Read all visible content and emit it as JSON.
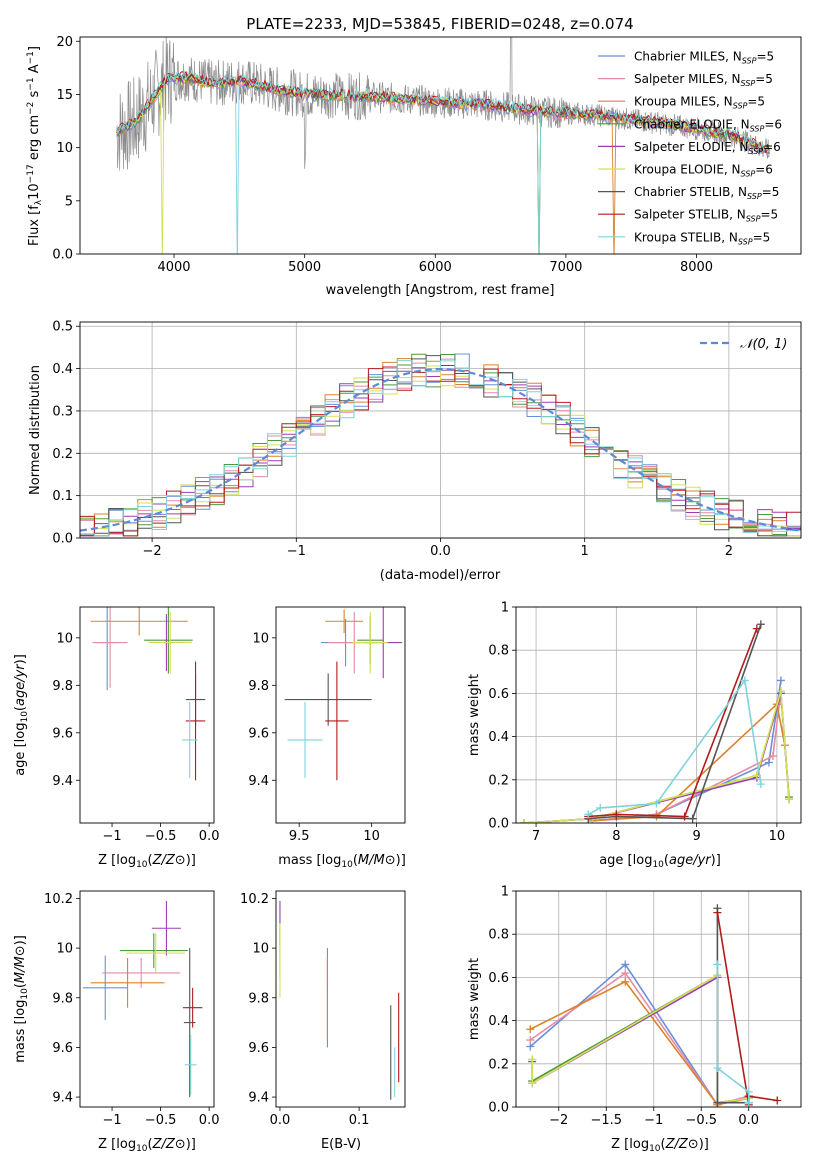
{
  "title": "PLATE=2233, MJD=53845, FIBERID=0248, z=0.074",
  "colors": {
    "Chabrier MILES": "#6a8fd8",
    "Salpeter MILES": "#e68aa6",
    "Kroupa MILES": "#d9822b",
    "Chabrier ELODIE": "#4f9a3d",
    "Salpeter ELODIE": "#9b3fb5",
    "Kroupa ELODIE": "#d4e157",
    "Chabrier STELIB": "#555555",
    "Salpeter STELIB": "#b31b1b",
    "Kroupa STELIB": "#7fd3dc",
    "observed": "#8c8c8c",
    "gauss": "#5b8bd6"
  },
  "chart_data": [
    {
      "id": "spectrum",
      "type": "line",
      "xlabel": "wavelength [Angstrom, rest frame]",
      "ylabel": "Flux [f_λ 10^{-17} erg cm^{-2} s^{-1} A^{-1}]",
      "xlim": [
        3280,
        8800
      ],
      "ylim": [
        0,
        20.4
      ],
      "xticks": [
        4000,
        5000,
        6000,
        7000,
        8000
      ],
      "yticks": [
        0,
        5,
        10,
        15,
        20
      ],
      "legend_position": "upper right",
      "legend": [
        {
          "model": "Chabrier MILES",
          "nssp": "5"
        },
        {
          "model": "Salpeter MILES",
          "nssp": "5"
        },
        {
          "model": "Kroupa MILES",
          "nssp": "5"
        },
        {
          "model": "Chabrier ELODIE",
          "nssp": "6"
        },
        {
          "model": "Salpeter ELODIE",
          "nssp": "6"
        },
        {
          "model": "Kroupa ELODIE",
          "nssp": "6"
        },
        {
          "model": "Chabrier STELIB",
          "nssp": "5"
        },
        {
          "model": "Salpeter STELIB",
          "nssp": "5"
        },
        {
          "model": "Kroupa STELIB",
          "nssp": "5"
        }
      ],
      "continuum": [
        [
          3560,
          11.5
        ],
        [
          3700,
          12.3
        ],
        [
          3850,
          14.8
        ],
        [
          3950,
          16.5
        ],
        [
          4100,
          16.6
        ],
        [
          4300,
          16.0
        ],
        [
          4500,
          16.3
        ],
        [
          4800,
          15.4
        ],
        [
          5000,
          15.0
        ],
        [
          5300,
          14.9
        ],
        [
          5600,
          14.7
        ],
        [
          6000,
          14.3
        ],
        [
          6400,
          14.0
        ],
        [
          6800,
          13.4
        ],
        [
          7200,
          13.1
        ],
        [
          7600,
          12.5
        ],
        [
          8000,
          11.8
        ],
        [
          8300,
          11.0
        ],
        [
          8550,
          9.7
        ]
      ]
    },
    {
      "id": "residuals",
      "type": "line",
      "xlabel": "(data-model)/error",
      "ylabel": "Normed distribution",
      "xlim": [
        -2.5,
        2.5
      ],
      "ylim": [
        0,
        0.51
      ],
      "xticks": [
        -2,
        -1,
        0,
        1,
        2
      ],
      "yticks": [
        0.0,
        0.1,
        0.2,
        0.3,
        0.4,
        0.5
      ],
      "grid": true,
      "legend_position": "upper right",
      "legend": [
        "𝒩(0, 1)"
      ],
      "series": [
        {
          "name": "𝒩(0, 1)",
          "mu": 0,
          "sigma": 1,
          "style": "dashed"
        }
      ]
    },
    {
      "id": "age-vs-Z",
      "type": "scatter",
      "xlabel": "Z [log10(Z/Z⊙)]",
      "ylabel": "age [log10(age/yr)]",
      "xlim": [
        -1.33,
        0.05
      ],
      "ylim": [
        9.22,
        10.13
      ],
      "xticks": [
        -1.0,
        -0.5,
        0.0
      ],
      "yticks": [
        9.4,
        9.6,
        9.8,
        10.0
      ],
      "points": [
        {
          "model": "Chabrier MILES",
          "x": -1.05,
          "xerr": 0.1,
          "y": 9.98,
          "yerr": 0.2
        },
        {
          "model": "Salpeter MILES",
          "x": -1.02,
          "xerr": 0.18,
          "y": 9.98,
          "yerr": 0.19
        },
        {
          "model": "Kroupa MILES",
          "x": -0.72,
          "xerr": 0.5,
          "y": 10.07,
          "yerr": 0.06
        },
        {
          "model": "Chabrier ELODIE",
          "x": -0.42,
          "xerr": 0.25,
          "y": 9.99,
          "yerr": 0.14
        },
        {
          "model": "Salpeter ELODIE",
          "x": -0.44,
          "xerr": 0.02,
          "y": 9.98,
          "yerr": 0.12
        },
        {
          "model": "Kroupa ELODIE",
          "x": -0.4,
          "xerr": 0.22,
          "y": 9.98,
          "yerr": 0.13
        },
        {
          "model": "Chabrier STELIB",
          "x": -0.14,
          "xerr": 0.1,
          "y": 9.74,
          "yerr": 0.11
        },
        {
          "model": "Salpeter STELIB",
          "x": -0.14,
          "xerr": 0.1,
          "y": 9.65,
          "yerr": 0.25
        },
        {
          "model": "Kroupa STELIB",
          "x": -0.2,
          "xerr": 0.08,
          "y": 9.57,
          "yerr": 0.16
        }
      ]
    },
    {
      "id": "age-vs-mass",
      "type": "scatter",
      "xlabel": "mass [log10(M/M⊙)]",
      "ylabel": "",
      "xlim": [
        9.34,
        10.23
      ],
      "ylim": [
        9.22,
        10.13
      ],
      "xticks": [
        9.5,
        10.0
      ],
      "yticks": [
        9.4,
        9.6,
        9.8,
        10.0
      ],
      "points": [
        {
          "model": "Chabrier MILES",
          "x": 9.82,
          "xerr": 0.17,
          "y": 9.98,
          "yerr": 0.1
        },
        {
          "model": "Salpeter MILES",
          "x": 9.88,
          "xerr": 0.18,
          "y": 9.98,
          "yerr": 0.13
        },
        {
          "model": "Kroupa MILES",
          "x": 9.81,
          "xerr": 0.13,
          "y": 10.07,
          "yerr": 0.05
        },
        {
          "model": "Chabrier ELODIE",
          "x": 9.99,
          "xerr": 0.09,
          "y": 9.99,
          "yerr": 0.1
        },
        {
          "model": "Salpeter ELODIE",
          "x": 10.08,
          "xerr": 0.13,
          "y": 9.98,
          "yerr": 0.15
        },
        {
          "model": "Kroupa ELODIE",
          "x": 9.99,
          "xerr": 0.12,
          "y": 9.98,
          "yerr": 0.13
        },
        {
          "model": "Chabrier STELIB",
          "x": 9.7,
          "xerr": 0.3,
          "y": 9.74,
          "yerr": 0.11
        },
        {
          "model": "Salpeter STELIB",
          "x": 9.76,
          "xerr": 0.08,
          "y": 9.65,
          "yerr": 0.25
        },
        {
          "model": "Kroupa STELIB",
          "x": 9.54,
          "xerr": 0.12,
          "y": 9.57,
          "yerr": 0.16
        }
      ]
    },
    {
      "id": "mass-weight-vs-age",
      "type": "line",
      "xlabel": "age [log10(age/yr)]",
      "ylabel": "mass weight",
      "xlim": [
        6.75,
        10.3
      ],
      "ylim": [
        0,
        1.0
      ],
      "xticks": [
        7,
        8,
        9,
        10
      ],
      "yticks": [
        0.0,
        0.2,
        0.4,
        0.6,
        0.8,
        1.0
      ],
      "grid": true,
      "series": [
        {
          "model": "Chabrier MILES",
          "x": [
            7.7,
            8.5,
            9.9,
            10.05
          ],
          "y": [
            0.01,
            0.04,
            0.28,
            0.66
          ]
        },
        {
          "model": "Salpeter MILES",
          "x": [
            7.7,
            8.5,
            9.95,
            10.05
          ],
          "y": [
            0.01,
            0.04,
            0.31,
            0.61
          ]
        },
        {
          "model": "Kroupa MILES",
          "x": [
            7.7,
            8.5,
            10.0,
            10.1
          ],
          "y": [
            0.01,
            0.03,
            0.55,
            0.36
          ]
        },
        {
          "model": "Chabrier ELODIE",
          "x": [
            6.85,
            7.7,
            9.75,
            10.05,
            10.15
          ],
          "y": [
            0.0,
            0.02,
            0.22,
            0.6,
            0.12
          ]
        },
        {
          "model": "Salpeter ELODIE",
          "x": [
            6.85,
            7.7,
            9.75,
            10.05,
            10.15
          ],
          "y": [
            0.0,
            0.02,
            0.21,
            0.6,
            0.11
          ]
        },
        {
          "model": "Kroupa ELODIE",
          "x": [
            6.85,
            7.7,
            9.75,
            10.05,
            10.15
          ],
          "y": [
            0.0,
            0.02,
            0.22,
            0.61,
            0.11
          ]
        },
        {
          "model": "Chabrier STELIB",
          "x": [
            7.65,
            8.0,
            8.95,
            9.8
          ],
          "y": [
            0.02,
            0.03,
            0.02,
            0.92
          ]
        },
        {
          "model": "Salpeter STELIB",
          "x": [
            7.65,
            8.0,
            8.85,
            9.75
          ],
          "y": [
            0.03,
            0.04,
            0.03,
            0.9
          ]
        },
        {
          "model": "Kroupa STELIB",
          "x": [
            7.65,
            7.8,
            8.5,
            9.6,
            9.8
          ],
          "y": [
            0.04,
            0.07,
            0.09,
            0.66,
            0.18
          ]
        }
      ]
    },
    {
      "id": "mass-vs-Z",
      "type": "scatter",
      "xlabel": "Z [log10(Z/Z⊙)]",
      "ylabel": "mass [log10(M/M⊙)]",
      "xlim": [
        -1.33,
        0.05
      ],
      "ylim": [
        9.36,
        10.23
      ],
      "xticks": [
        -1.0,
        -0.5,
        0.0
      ],
      "yticks": [
        9.4,
        9.6,
        9.8,
        10.0,
        10.2
      ],
      "points": [
        {
          "model": "Chabrier MILES",
          "x": -1.07,
          "xerr": 0.23,
          "y": 9.84,
          "yerr": 0.13
        },
        {
          "model": "Salpeter MILES",
          "x": -0.7,
          "xerr": 0.4,
          "y": 9.9,
          "yerr": 0.06
        },
        {
          "model": "Kroupa MILES",
          "x": -0.84,
          "xerr": 0.38,
          "y": 9.86,
          "yerr": 0.1
        },
        {
          "model": "Chabrier ELODIE",
          "x": -0.57,
          "xerr": 0.35,
          "y": 9.99,
          "yerr": 0.07
        },
        {
          "model": "Salpeter ELODIE",
          "x": -0.44,
          "xerr": 0.15,
          "y": 10.08,
          "yerr": 0.11
        },
        {
          "model": "Kroupa ELODIE",
          "x": -0.55,
          "xerr": 0.3,
          "y": 9.98,
          "yerr": 0.08
        },
        {
          "model": "Chabrier STELIB",
          "x": -0.2,
          "xerr": 0.06,
          "y": 9.7,
          "yerr": 0.3
        },
        {
          "model": "Salpeter STELIB",
          "x": -0.17,
          "xerr": 0.1,
          "y": 9.76,
          "yerr": 0.08
        },
        {
          "model": "Kroupa STELIB",
          "x": -0.19,
          "xerr": 0.06,
          "y": 9.53,
          "yerr": 0.12
        }
      ]
    },
    {
      "id": "mass-vs-EBV",
      "type": "scatter",
      "xlabel": "E(B-V)",
      "ylabel": "",
      "xlim": [
        -0.005,
        0.158
      ],
      "ylim": [
        9.36,
        10.23
      ],
      "xticks": [
        0.0,
        0.1
      ],
      "yticks": [
        9.4,
        9.6,
        9.8,
        10.0,
        10.2
      ],
      "points": [
        {
          "model": "Chabrier MILES",
          "x": 0.06,
          "xerr": 0,
          "y": 9.8,
          "yerr": 0.2
        },
        {
          "model": "Salpeter MILES",
          "x": 0.06,
          "xerr": 0,
          "y": 9.9,
          "yerr": 0.05
        },
        {
          "model": "Kroupa MILES",
          "x": 0.06,
          "xerr": 0,
          "y": 9.8,
          "yerr": 0.17
        },
        {
          "model": "Chabrier ELODIE",
          "x": 0.0,
          "xerr": 0,
          "y": 9.98,
          "yerr": 0.1
        },
        {
          "model": "Salpeter ELODIE",
          "x": 0.0,
          "xerr": 0,
          "y": 10.1,
          "yerr": 0.09
        },
        {
          "model": "Kroupa ELODIE",
          "x": 0.0,
          "xerr": 0,
          "y": 9.95,
          "yerr": 0.15
        },
        {
          "model": "Chabrier STELIB",
          "x": 0.14,
          "xerr": 0,
          "y": 9.58,
          "yerr": 0.19
        },
        {
          "model": "Salpeter STELIB",
          "x": 0.15,
          "xerr": 0,
          "y": 9.64,
          "yerr": 0.18
        },
        {
          "model": "Kroupa STELIB",
          "x": 0.145,
          "xerr": 0,
          "y": 9.5,
          "yerr": 0.1
        }
      ]
    },
    {
      "id": "mass-weight-vs-Z",
      "type": "line",
      "xlabel": "Z [log10(Z/Z⊙)]",
      "ylabel": "mass weight",
      "xlim": [
        -2.45,
        0.55
      ],
      "ylim": [
        0,
        1.0
      ],
      "xticks": [
        -2.0,
        -1.5,
        -1.0,
        -0.5,
        0.0
      ],
      "yticks": [
        0.0,
        0.2,
        0.4,
        0.6,
        0.8,
        1.0
      ],
      "grid": true,
      "series": [
        {
          "model": "Chabrier MILES",
          "x": [
            -2.3,
            -1.3,
            -0.33,
            0.0
          ],
          "y": [
            0.28,
            0.66,
            0.01,
            0.05
          ]
        },
        {
          "model": "Salpeter MILES",
          "x": [
            -2.3,
            -1.3,
            -0.33,
            0.0
          ],
          "y": [
            0.31,
            0.62,
            0.01,
            0.05
          ]
        },
        {
          "model": "Kroupa MILES",
          "x": [
            -2.3,
            -1.3,
            -0.33,
            0.0
          ],
          "y": [
            0.36,
            0.58,
            0.01,
            0.04
          ]
        },
        {
          "model": "Chabrier ELODIE",
          "x": [
            -2.28,
            -2.28,
            -0.33,
            -0.33,
            0.0
          ],
          "y": [
            0.22,
            0.12,
            0.61,
            0.02,
            0.04
          ]
        },
        {
          "model": "Salpeter ELODIE",
          "x": [
            -2.28,
            -2.28,
            -0.33,
            -0.33,
            0.0
          ],
          "y": [
            0.21,
            0.11,
            0.6,
            0.02,
            0.04
          ]
        },
        {
          "model": "Kroupa ELODIE",
          "x": [
            -2.28,
            -2.28,
            -0.33,
            -0.33,
            0.0
          ],
          "y": [
            0.22,
            0.11,
            0.61,
            0.02,
            0.04
          ]
        },
        {
          "model": "Chabrier STELIB",
          "x": [
            -0.33,
            -0.33,
            0.0,
            0.0
          ],
          "y": [
            0.92,
            0.02,
            0.02,
            0.05
          ]
        },
        {
          "model": "Salpeter STELIB",
          "x": [
            -0.33,
            0.0,
            0.0,
            0.3
          ],
          "y": [
            0.9,
            0.01,
            0.05,
            0.03
          ]
        },
        {
          "model": "Kroupa STELIB",
          "x": [
            -0.33,
            -0.33,
            0.0,
            0.0
          ],
          "y": [
            0.66,
            0.18,
            0.07,
            0.02
          ]
        }
      ]
    }
  ]
}
